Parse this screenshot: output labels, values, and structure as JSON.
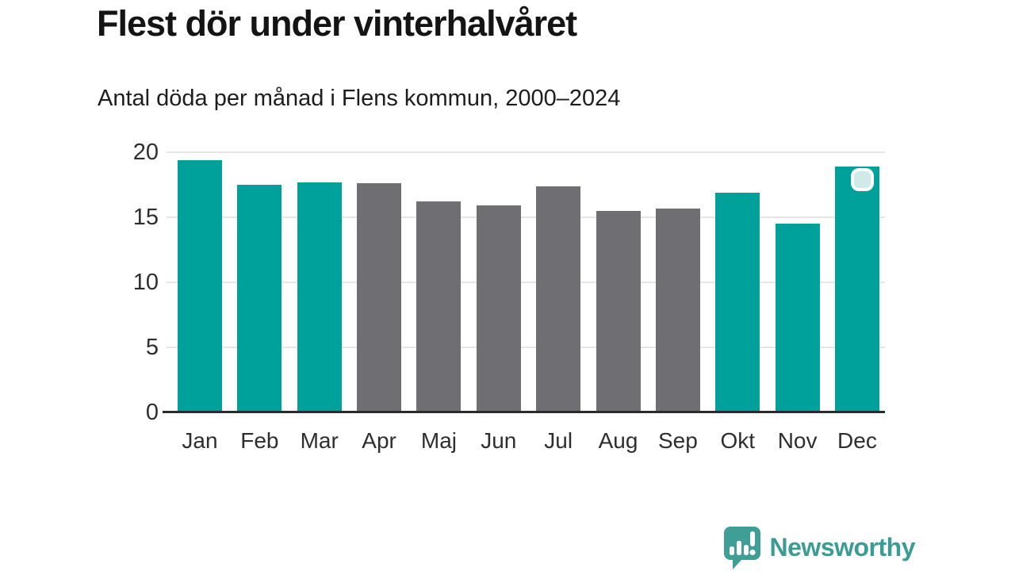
{
  "chart_data": {
    "type": "bar",
    "title": "Flest dör under vinterhalvåret",
    "subtitle": "Antal döda per månad i Flens kommun, 2000–2024",
    "categories": [
      "Jan",
      "Feb",
      "Mar",
      "Apr",
      "Maj",
      "Jun",
      "Jul",
      "Aug",
      "Sep",
      "Okt",
      "Nov",
      "Dec"
    ],
    "values": [
      19.4,
      17.5,
      17.7,
      17.6,
      16.2,
      15.9,
      17.4,
      15.5,
      15.7,
      16.9,
      14.5,
      18.9
    ],
    "highlighted": [
      true,
      true,
      true,
      false,
      false,
      false,
      false,
      false,
      false,
      true,
      true,
      true
    ],
    "xlabel": "",
    "ylabel": "",
    "ylim": [
      0,
      20
    ],
    "yticks": [
      0,
      5,
      10,
      15,
      20
    ],
    "grid": true,
    "legend": false,
    "colors": {
      "highlight": "#00a19a",
      "muted": "#6e6e73",
      "gridline": "#e6e6e6",
      "axis_line": "#2b2b2b",
      "text": "#141414"
    }
  },
  "annotation": {
    "badge_on": "Dec"
  },
  "footer": {
    "brand": "Newsworthy",
    "brand_color": "#3a9c92"
  }
}
